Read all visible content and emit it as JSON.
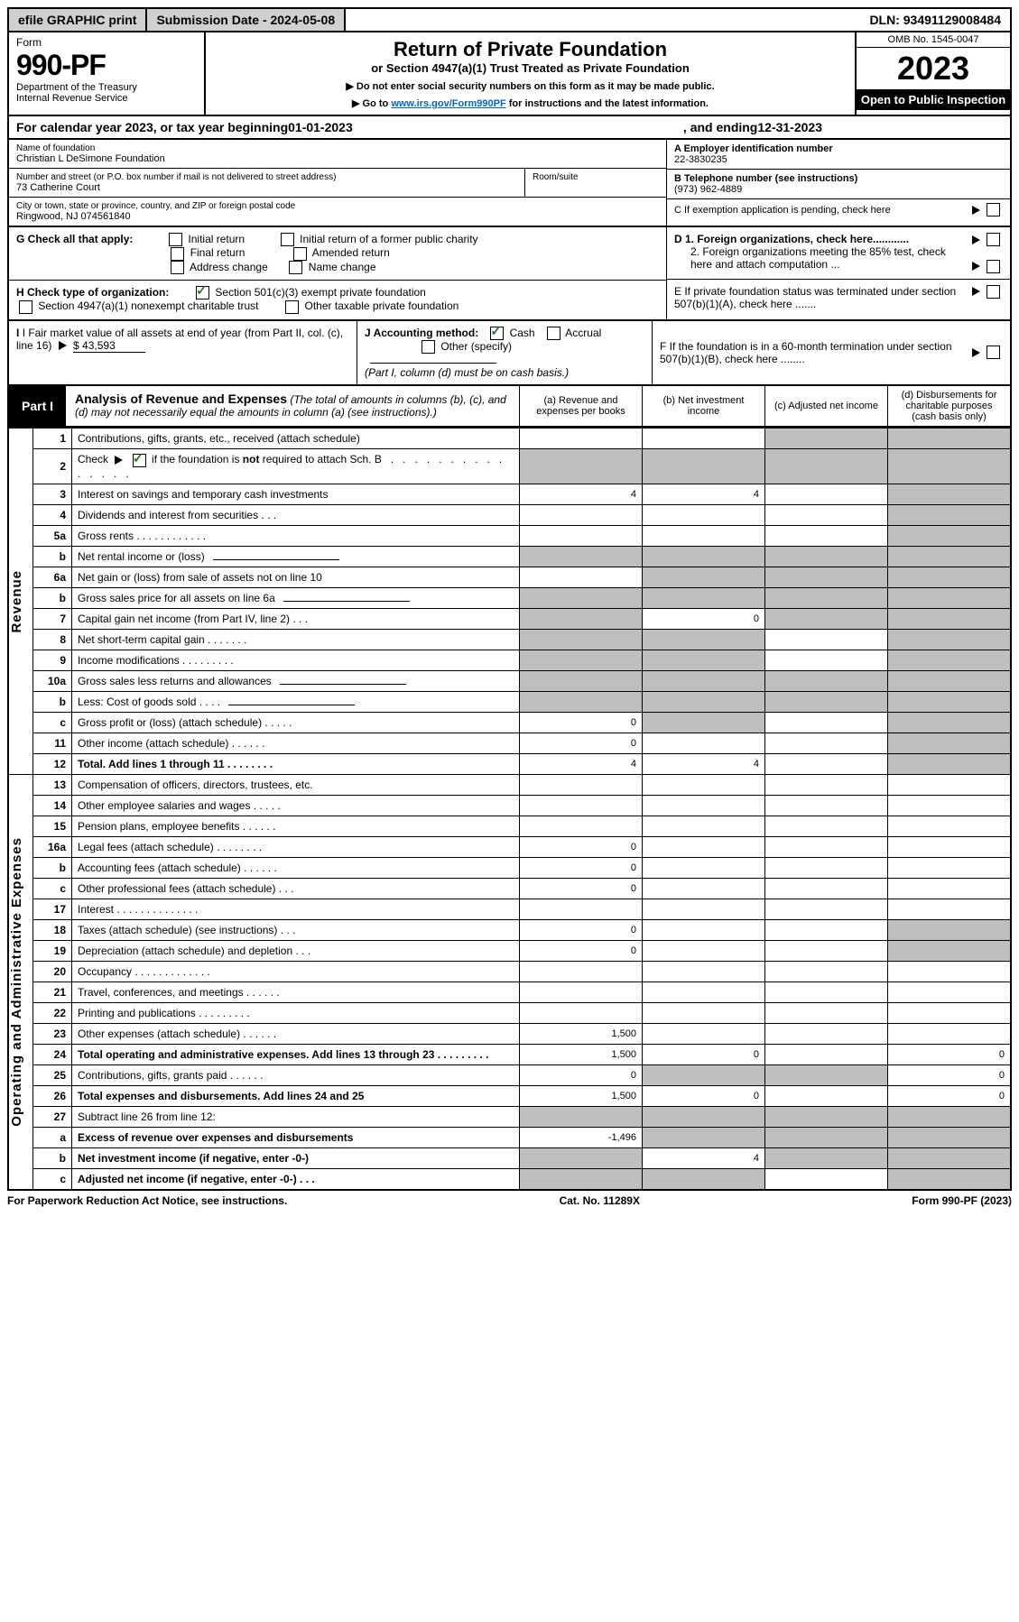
{
  "top": {
    "efile": "efile GRAPHIC print",
    "submission": "Submission Date - 2024-05-08",
    "dln": "DLN: 93491129008484"
  },
  "header": {
    "form_word": "Form",
    "form_no": "990-PF",
    "dept": "Department of the Treasury\nInternal Revenue Service",
    "title": "Return of Private Foundation",
    "subtitle": "or Section 4947(a)(1) Trust Treated as Private Foundation",
    "instr1": "▶ Do not enter social security numbers on this form as it may be made public.",
    "instr2_prefix": "▶ Go to ",
    "instr2_link": "www.irs.gov/Form990PF",
    "instr2_suffix": " for instructions and the latest information.",
    "omb": "OMB No. 1545-0047",
    "year": "2023",
    "open": "Open to Public Inspection"
  },
  "cal": {
    "prefix": "For calendar year 2023, or tax year beginning ",
    "begin": "01-01-2023",
    "mid": " , and ending ",
    "end": "12-31-2023"
  },
  "entity": {
    "name_label": "Name of foundation",
    "name": "Christian L DeSimone Foundation",
    "addr_label": "Number and street (or P.O. box number if mail is not delivered to street address)",
    "addr": "73 Catherine Court",
    "room_label": "Room/suite",
    "city_label": "City or town, state or province, country, and ZIP or foreign postal code",
    "city": "Ringwood, NJ  074561840",
    "a_label": "A Employer identification number",
    "a_val": "22-3830235",
    "b_label": "B Telephone number (see instructions)",
    "b_val": "(973) 962-4889",
    "c_label": "C If exemption application is pending, check here"
  },
  "g": {
    "label": "G Check all that apply:",
    "opts": [
      "Initial return",
      "Initial return of a former public charity",
      "Final return",
      "Amended return",
      "Address change",
      "Name change"
    ]
  },
  "h": {
    "label": "H Check type of organization:",
    "o1": "Section 501(c)(3) exempt private foundation",
    "o2": "Section 4947(a)(1) nonexempt charitable trust",
    "o3": "Other taxable private foundation"
  },
  "d": {
    "d1": "D 1. Foreign organizations, check here............",
    "d2": "2. Foreign organizations meeting the 85% test, check here and attach computation ..."
  },
  "e": "E  If private foundation status was terminated under section 507(b)(1)(A), check here .......",
  "f": "F  If the foundation is in a 60-month termination under section 507(b)(1)(B), check here ........",
  "i": {
    "label": "I Fair market value of all assets at end of year (from Part II, col. (c), line 16)",
    "val": "$  43,593"
  },
  "j": {
    "label": "J Accounting method:",
    "cash": "Cash",
    "accrual": "Accrual",
    "other": "Other (specify)",
    "note": "(Part I, column (d) must be on cash basis.)"
  },
  "part1": {
    "tab": "Part I",
    "title": "Analysis of Revenue and Expenses",
    "note": " (The total of amounts in columns (b), (c), and (d) may not necessarily equal the amounts in column (a) (see instructions).)",
    "col_a": "(a)   Revenue and expenses per books",
    "col_b": "(b)  Net investment income",
    "col_c": "(c)  Adjusted net income",
    "col_d": "(d)  Disbursements for charitable purposes (cash basis only)"
  },
  "side": {
    "revenue": "Revenue",
    "expenses": "Operating and Administrative Expenses"
  },
  "rows": [
    {
      "n": "1",
      "t": "Contributions, gifts, grants, etc., received (attach schedule)",
      "a": "",
      "b": "",
      "c": "shade",
      "d": "shade"
    },
    {
      "n": "2",
      "t": "Check ▶ ☑ if the foundation is not required to attach Sch. B    .   .   .   .   .   .   .   .   .   .   .   .   .   .   .",
      "a": "shade",
      "b": "shade",
      "c": "shade",
      "d": "shade",
      "checkmark": true
    },
    {
      "n": "3",
      "t": "Interest on savings and temporary cash investments",
      "a": "4",
      "b": "4",
      "c": "",
      "d": "shade"
    },
    {
      "n": "4",
      "t": "Dividends and interest from securities    .   .   .",
      "a": "",
      "b": "",
      "c": "",
      "d": "shade"
    },
    {
      "n": "5a",
      "t": "Gross rents    .   .   .   .   .   .   .   .   .   .   .   .",
      "a": "",
      "b": "",
      "c": "",
      "d": "shade"
    },
    {
      "n": "b",
      "t": "Net rental income or (loss)  ",
      "a": "shade",
      "b": "shade",
      "c": "shade",
      "d": "shade",
      "sub": true
    },
    {
      "n": "6a",
      "t": "Net gain or (loss) from sale of assets not on line 10",
      "a": "",
      "b": "shade",
      "c": "shade",
      "d": "shade"
    },
    {
      "n": "b",
      "t": "Gross sales price for all assets on line 6a ",
      "a": "shade",
      "b": "shade",
      "c": "shade",
      "d": "shade",
      "sub": true
    },
    {
      "n": "7",
      "t": "Capital gain net income (from Part IV, line 2)   .   .   .",
      "a": "shade",
      "b": "0",
      "c": "shade",
      "d": "shade"
    },
    {
      "n": "8",
      "t": "Net short-term capital gain   .   .   .   .   .   .   .",
      "a": "shade",
      "b": "shade",
      "c": "",
      "d": "shade"
    },
    {
      "n": "9",
      "t": "Income modifications   .   .   .   .   .   .   .   .   .",
      "a": "shade",
      "b": "shade",
      "c": "",
      "d": "shade"
    },
    {
      "n": "10a",
      "t": "Gross sales less returns and allowances",
      "a": "shade",
      "b": "shade",
      "c": "shade",
      "d": "shade",
      "box": true
    },
    {
      "n": "b",
      "t": "Less: Cost of goods sold    .   .   .   .",
      "a": "shade",
      "b": "shade",
      "c": "shade",
      "d": "shade",
      "box": true
    },
    {
      "n": "c",
      "t": "Gross profit or (loss) (attach schedule)    .   .   .   .   .",
      "a": "0",
      "b": "shade",
      "c": "",
      "d": "shade"
    },
    {
      "n": "11",
      "t": "Other income (attach schedule)    .   .   .   .   .   .",
      "a": "0",
      "b": "",
      "c": "",
      "d": "shade"
    },
    {
      "n": "12",
      "t": "Total. Add lines 1 through 11    .   .   .   .   .   .   .   .",
      "a": "4",
      "b": "4",
      "c": "",
      "d": "shade",
      "bold": true
    },
    {
      "n": "13",
      "t": "Compensation of officers, directors, trustees, etc.",
      "a": "",
      "b": "",
      "c": "",
      "d": ""
    },
    {
      "n": "14",
      "t": "Other employee salaries and wages    .   .   .   .   .",
      "a": "",
      "b": "",
      "c": "",
      "d": ""
    },
    {
      "n": "15",
      "t": "Pension plans, employee benefits   .   .   .   .   .   .",
      "a": "",
      "b": "",
      "c": "",
      "d": ""
    },
    {
      "n": "16a",
      "t": "Legal fees (attach schedule)   .   .   .   .   .   .   .   .",
      "a": "0",
      "b": "",
      "c": "",
      "d": ""
    },
    {
      "n": "b",
      "t": "Accounting fees (attach schedule)   .   .   .   .   .   .",
      "a": "0",
      "b": "",
      "c": "",
      "d": ""
    },
    {
      "n": "c",
      "t": "Other professional fees (attach schedule)    .   .   .",
      "a": "0",
      "b": "",
      "c": "",
      "d": ""
    },
    {
      "n": "17",
      "t": "Interest   .   .   .   .   .   .   .   .   .   .   .   .   .   .",
      "a": "",
      "b": "",
      "c": "",
      "d": ""
    },
    {
      "n": "18",
      "t": "Taxes (attach schedule) (see instructions)    .   .   .",
      "a": "0",
      "b": "",
      "c": "",
      "d": "shade"
    },
    {
      "n": "19",
      "t": "Depreciation (attach schedule) and depletion    .   .   .",
      "a": "0",
      "b": "",
      "c": "",
      "d": "shade"
    },
    {
      "n": "20",
      "t": "Occupancy   .   .   .   .   .   .   .   .   .   .   .   .   .",
      "a": "",
      "b": "",
      "c": "",
      "d": ""
    },
    {
      "n": "21",
      "t": "Travel, conferences, and meetings   .   .   .   .   .   .",
      "a": "",
      "b": "",
      "c": "",
      "d": ""
    },
    {
      "n": "22",
      "t": "Printing and publications   .   .   .   .   .   .   .   .   .",
      "a": "",
      "b": "",
      "c": "",
      "d": ""
    },
    {
      "n": "23",
      "t": "Other expenses (attach schedule)   .   .   .   .   .   .",
      "a": "1,500",
      "b": "",
      "c": "",
      "d": ""
    },
    {
      "n": "24",
      "t": "Total operating and administrative expenses. Add lines 13 through 23    .   .   .   .   .   .   .   .   .",
      "a": "1,500",
      "b": "0",
      "c": "",
      "d": "0",
      "bold": true
    },
    {
      "n": "25",
      "t": "Contributions, gifts, grants paid    .   .   .   .   .   .",
      "a": "0",
      "b": "shade",
      "c": "shade",
      "d": "0"
    },
    {
      "n": "26",
      "t": "Total expenses and disbursements. Add lines 24 and 25",
      "a": "1,500",
      "b": "0",
      "c": "",
      "d": "0",
      "bold": true
    },
    {
      "n": "27",
      "t": "Subtract line 26 from line 12:",
      "a": "shade",
      "b": "shade",
      "c": "shade",
      "d": "shade"
    },
    {
      "n": "a",
      "t": "Excess of revenue over expenses and disbursements",
      "a": "-1,496",
      "b": "shade",
      "c": "shade",
      "d": "shade",
      "bold": true
    },
    {
      "n": "b",
      "t": "Net investment income (if negative, enter -0-)",
      "a": "shade",
      "b": "4",
      "c": "shade",
      "d": "shade",
      "bold": true
    },
    {
      "n": "c",
      "t": "Adjusted net income (if negative, enter -0-)   .   .   .",
      "a": "shade",
      "b": "shade",
      "c": "",
      "d": "shade",
      "bold": true
    }
  ],
  "footer": {
    "left": "For Paperwork Reduction Act Notice, see instructions.",
    "mid": "Cat. No. 11289X",
    "right": "Form 990-PF (2023)"
  }
}
